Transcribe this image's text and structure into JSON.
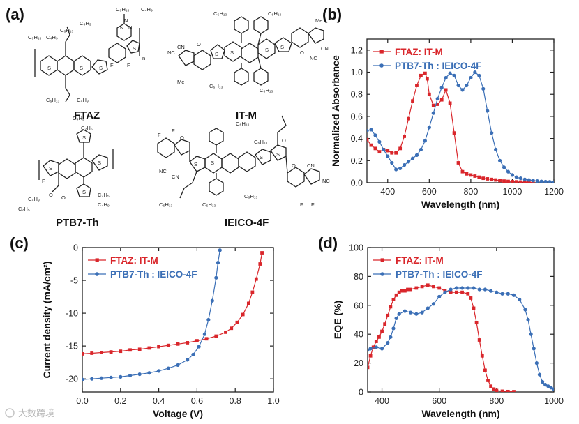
{
  "panel_labels": [
    "(a)",
    "(b)",
    "(c)",
    "(d)"
  ],
  "molecules": [
    {
      "name": "FTAZ",
      "substituents": [
        "C₆H₁₃",
        "C₄H₉",
        "C₆H₁₃",
        "C₄H₉",
        "C₆H₁₃",
        "C₄H₉",
        "C₆H₁₃",
        "C₄H₉"
      ],
      "atoms": [
        "S",
        "S",
        "S",
        "S",
        "N",
        "N",
        "N",
        "F",
        "F",
        "n"
      ]
    },
    {
      "name": "IT-M",
      "substituents": [
        "C₆H₁₃",
        "C₆H₁₃",
        "C₆H₁₃",
        "C₆H₁₃",
        "Me",
        "Me"
      ],
      "atoms": [
        "NC",
        "CN",
        "O",
        "O",
        "CN",
        "NC",
        "S",
        "S",
        "S",
        "S"
      ]
    },
    {
      "name": "PTB7-Th",
      "substituents": [
        "C₄H₉",
        "C₂H₅",
        "C₄H₉",
        "C₂H₅",
        "C₂H₅",
        "C₄H₉"
      ],
      "atoms": [
        "F",
        "O",
        "O",
        "S",
        "S",
        "S",
        "S"
      ]
    },
    {
      "name": "IEICO-4F",
      "substituents": [
        "C₆H₁₃",
        "C₆H₁₃",
        "C₆H₁₃",
        "C₆H₁₃",
        "C₆H₁₃"
      ],
      "atoms": [
        "F",
        "F",
        "O",
        "NC",
        "CN",
        "S",
        "S",
        "S",
        "S",
        "O",
        "O",
        "CN",
        "NC",
        "F",
        "F"
      ]
    }
  ],
  "colors": {
    "red": "#d9262b",
    "blue": "#3b6fb6",
    "axis": "#222222"
  },
  "watermark": "大数跨境",
  "chart_data": [
    {
      "panel": "(b)",
      "type": "line",
      "xlabel": "Wavelength (nm)",
      "ylabel": "Normalized Absorbance",
      "xlim": [
        300,
        1200
      ],
      "ylim": [
        0,
        1.3
      ],
      "xticks": [
        400,
        600,
        800,
        1000,
        1200
      ],
      "yticks": [
        0.0,
        0.2,
        0.4,
        0.6,
        0.8,
        1.0,
        1.2
      ],
      "ytick_labels": [
        "0.0",
        "0.2",
        "0.4",
        "0.6",
        "0.8",
        "1.0",
        "1.2"
      ],
      "legend": "top-right",
      "series": [
        {
          "name": "FTAZ: IT-M",
          "color": "red",
          "marker": "square",
          "x": [
            300,
            320,
            340,
            360,
            380,
            400,
            420,
            440,
            460,
            480,
            500,
            520,
            540,
            560,
            580,
            590,
            600,
            620,
            640,
            660,
            680,
            700,
            720,
            740,
            760,
            780,
            800,
            820,
            840,
            860,
            880,
            900,
            920,
            940,
            960,
            980,
            1000,
            1020,
            1040,
            1060,
            1080,
            1100
          ],
          "y": [
            0.39,
            0.34,
            0.31,
            0.28,
            0.3,
            0.29,
            0.27,
            0.27,
            0.31,
            0.42,
            0.58,
            0.74,
            0.88,
            0.97,
            0.99,
            0.94,
            0.8,
            0.7,
            0.71,
            0.75,
            0.84,
            0.72,
            0.45,
            0.18,
            0.1,
            0.08,
            0.07,
            0.06,
            0.05,
            0.04,
            0.035,
            0.03,
            0.025,
            0.02,
            0.015,
            0.012,
            0.01,
            0.008,
            0.006,
            0.005,
            0.004,
            0.003
          ]
        },
        {
          "name": "PTB7-Th : IEICO-4F",
          "color": "blue",
          "marker": "circle",
          "x": [
            300,
            320,
            340,
            360,
            380,
            400,
            420,
            440,
            460,
            480,
            500,
            520,
            540,
            560,
            580,
            600,
            620,
            640,
            660,
            680,
            700,
            720,
            740,
            760,
            780,
            800,
            820,
            840,
            860,
            880,
            900,
            920,
            940,
            960,
            980,
            1000,
            1020,
            1040,
            1060,
            1080,
            1100,
            1120,
            1140,
            1160,
            1180,
            1200
          ],
          "y": [
            0.47,
            0.48,
            0.43,
            0.37,
            0.3,
            0.24,
            0.18,
            0.12,
            0.13,
            0.16,
            0.19,
            0.22,
            0.25,
            0.3,
            0.38,
            0.5,
            0.63,
            0.76,
            0.86,
            0.95,
            0.99,
            0.97,
            0.88,
            0.84,
            0.88,
            0.95,
            1.0,
            0.97,
            0.85,
            0.65,
            0.45,
            0.3,
            0.2,
            0.14,
            0.1,
            0.07,
            0.05,
            0.04,
            0.03,
            0.025,
            0.02,
            0.015,
            0.012,
            0.01,
            0.008,
            0.005
          ]
        }
      ]
    },
    {
      "panel": "(c)",
      "type": "line",
      "xlabel": "Voltage (V)",
      "ylabel": "Current density (mA/cm²)",
      "xlim": [
        0.0,
        1.0
      ],
      "ylim": [
        -22,
        0
      ],
      "xticks": [
        0.0,
        0.2,
        0.4,
        0.6,
        0.8,
        1.0
      ],
      "xtick_labels": [
        "0.0",
        "0.2",
        "0.4",
        "0.6",
        "0.8",
        "1.0"
      ],
      "yticks": [
        0,
        -5,
        -10,
        -15,
        -20
      ],
      "legend": "top-left",
      "series": [
        {
          "name": "FTAZ: IT-M",
          "color": "red",
          "marker": "square",
          "x": [
            0.0,
            0.05,
            0.1,
            0.15,
            0.2,
            0.25,
            0.3,
            0.35,
            0.4,
            0.45,
            0.5,
            0.55,
            0.6,
            0.65,
            0.7,
            0.75,
            0.78,
            0.81,
            0.84,
            0.87,
            0.89,
            0.91,
            0.93,
            0.94
          ],
          "y": [
            -16.2,
            -16.1,
            -16.0,
            -15.9,
            -15.8,
            -15.6,
            -15.5,
            -15.3,
            -15.1,
            -14.9,
            -14.7,
            -14.5,
            -14.2,
            -13.9,
            -13.5,
            -12.9,
            -12.3,
            -11.4,
            -10.2,
            -8.5,
            -6.8,
            -4.8,
            -2.5,
            -0.8
          ]
        },
        {
          "name": "PTB7-Th : IEICO-4F",
          "color": "blue",
          "marker": "circle",
          "x": [
            0.0,
            0.05,
            0.1,
            0.15,
            0.2,
            0.25,
            0.3,
            0.35,
            0.4,
            0.45,
            0.5,
            0.55,
            0.58,
            0.61,
            0.64,
            0.66,
            0.68,
            0.7,
            0.71,
            0.72
          ],
          "y": [
            -20.1,
            -20.0,
            -19.9,
            -19.8,
            -19.7,
            -19.5,
            -19.3,
            -19.1,
            -18.8,
            -18.4,
            -17.9,
            -17.1,
            -16.3,
            -15.1,
            -13.2,
            -11.0,
            -8.1,
            -4.6,
            -2.3,
            -0.4
          ]
        }
      ]
    },
    {
      "panel": "(d)",
      "type": "line",
      "xlabel": "Wavelength (nm)",
      "ylabel": "EQE (%)",
      "xlim": [
        350,
        1000
      ],
      "ylim": [
        0,
        100
      ],
      "xticks": [
        400,
        600,
        800,
        1000
      ],
      "yticks": [
        0,
        20,
        40,
        60,
        80,
        100
      ],
      "legend": "top-right",
      "series": [
        {
          "name": "FTAZ: IT-M",
          "color": "red",
          "marker": "square",
          "x": [
            350,
            360,
            370,
            380,
            390,
            400,
            410,
            420,
            430,
            440,
            450,
            460,
            470,
            480,
            490,
            500,
            520,
            540,
            560,
            580,
            600,
            620,
            640,
            660,
            680,
            700,
            710,
            720,
            730,
            740,
            750,
            760,
            770,
            780,
            790,
            800,
            820,
            840,
            860
          ],
          "y": [
            17,
            25,
            31,
            35,
            38,
            42,
            47,
            53,
            59,
            64,
            67,
            69,
            70,
            70,
            71,
            71,
            72,
            73,
            74,
            73,
            72,
            70,
            69,
            69,
            69,
            68,
            65,
            58,
            48,
            36,
            25,
            15,
            8,
            4,
            2,
            1,
            0.5,
            0.3,
            0.2
          ]
        },
        {
          "name": "PTB7-Th : IEICO-4F",
          "color": "blue",
          "marker": "circle",
          "x": [
            350,
            360,
            380,
            400,
            420,
            430,
            440,
            450,
            460,
            480,
            500,
            520,
            540,
            560,
            580,
            600,
            620,
            640,
            660,
            680,
            700,
            720,
            740,
            760,
            780,
            800,
            820,
            840,
            860,
            880,
            900,
            910,
            920,
            930,
            940,
            950,
            960,
            970,
            980,
            990,
            1000
          ],
          "y": [
            29,
            30,
            31,
            30,
            34,
            38,
            44,
            51,
            54,
            56,
            55,
            54,
            55,
            58,
            61,
            66,
            69,
            71,
            72,
            72,
            72,
            72,
            71,
            71,
            70,
            69,
            68,
            68,
            67,
            64,
            57,
            50,
            40,
            30,
            20,
            12,
            7,
            5,
            4,
            3,
            2
          ]
        }
      ]
    }
  ]
}
